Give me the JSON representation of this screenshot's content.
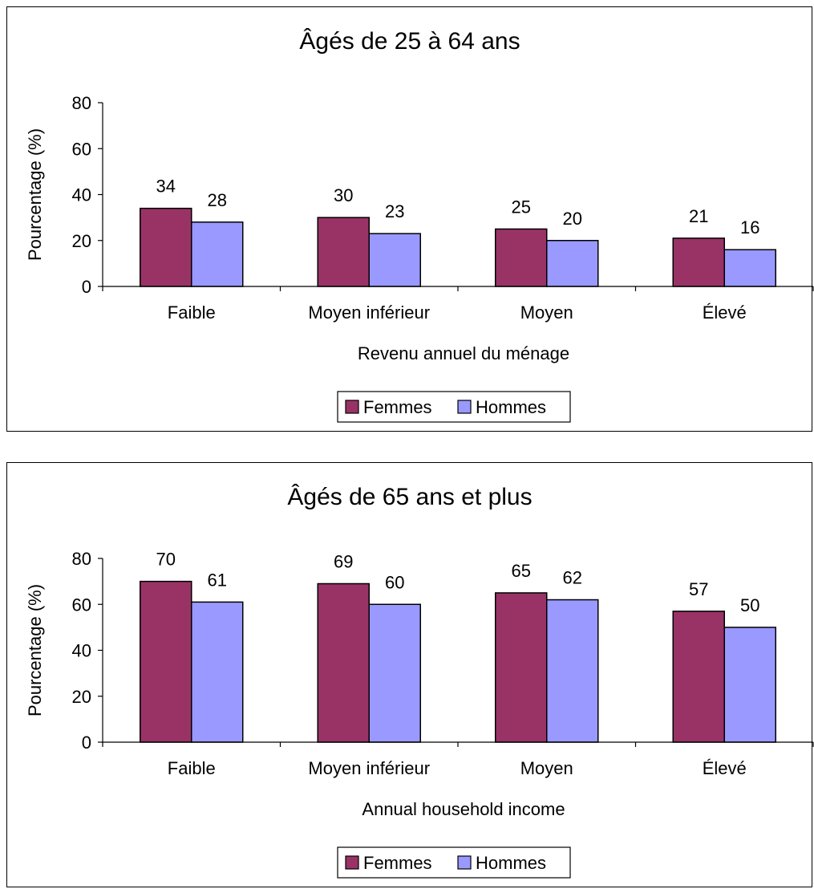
{
  "chart_data": [
    {
      "type": "bar",
      "title": "Âgés de 25 à 64 ans",
      "xlabel": "Revenu annuel du ménage",
      "ylabel": "Pourcentage (%)",
      "ylim": [
        0,
        80
      ],
      "yticks": [
        0,
        20,
        40,
        60,
        80
      ],
      "categories": [
        "Faible",
        "Moyen inférieur",
        "Moyen",
        "Élevé"
      ],
      "series": [
        {
          "name": "Femmes",
          "color": "#993366",
          "values": [
            34,
            30,
            25,
            21
          ]
        },
        {
          "name": "Hommes",
          "color": "#9999ff",
          "values": [
            28,
            23,
            20,
            16
          ]
        }
      ],
      "legend": "bottom",
      "grid": false
    },
    {
      "type": "bar",
      "title": "Âgés de 65 ans et plus",
      "xlabel": "Annual household income",
      "ylabel": "Pourcentage (%)",
      "ylim": [
        0,
        80
      ],
      "yticks": [
        0,
        20,
        40,
        60,
        80
      ],
      "categories": [
        "Faible",
        "Moyen inférieur",
        "Moyen",
        "Élevé"
      ],
      "series": [
        {
          "name": "Femmes",
          "color": "#993366",
          "values": [
            70,
            69,
            65,
            57
          ]
        },
        {
          "name": "Hommes",
          "color": "#9999ff",
          "values": [
            61,
            60,
            62,
            50
          ]
        }
      ],
      "legend": "bottom",
      "grid": false
    }
  ]
}
